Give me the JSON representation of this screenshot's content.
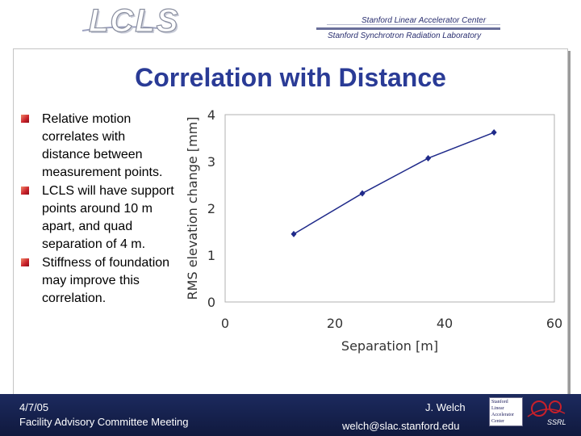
{
  "header": {
    "logo_text": "LCLS",
    "org_line1": "Stanford Linear Accelerator Center",
    "org_line2": "Stanford Synchrotron Radiation Laboratory"
  },
  "slide": {
    "title": "Correlation with Distance",
    "bullets": [
      "Relative motion correlates with distance between measurement points.",
      "LCLS will have support points around 10 m apart, and quad separation of 4 m.",
      "Stiffness of foundation may improve this correlation."
    ]
  },
  "footer": {
    "date": "4/7/05",
    "event": "Facility Advisory Committee Meeting",
    "author": "J. Welch",
    "email": "welch@slac.stanford.edu",
    "slac_logo_lines": [
      "Stanford",
      "Linear",
      "Accelerator",
      "Center"
    ],
    "ssrl_logo": "SSRL"
  },
  "colors": {
    "title": "#2a3b96",
    "footer_bg": "#1c2a5e",
    "series": "#1f2a8a",
    "bullet": "#c8202a"
  },
  "chart_data": {
    "type": "line",
    "title": "",
    "xlabel": "Separation [m]",
    "ylabel": "RMS elevation change [mm]",
    "xlim": [
      0,
      60
    ],
    "ylim": [
      0,
      4
    ],
    "xticks": [
      0,
      20,
      40,
      60
    ],
    "yticks": [
      0,
      1,
      2,
      3,
      4
    ],
    "grid": false,
    "legend": "none",
    "series": [
      {
        "x": [
          12.5,
          25,
          37,
          49
        ],
        "y": [
          1.45,
          2.32,
          3.07,
          3.62
        ]
      }
    ]
  }
}
